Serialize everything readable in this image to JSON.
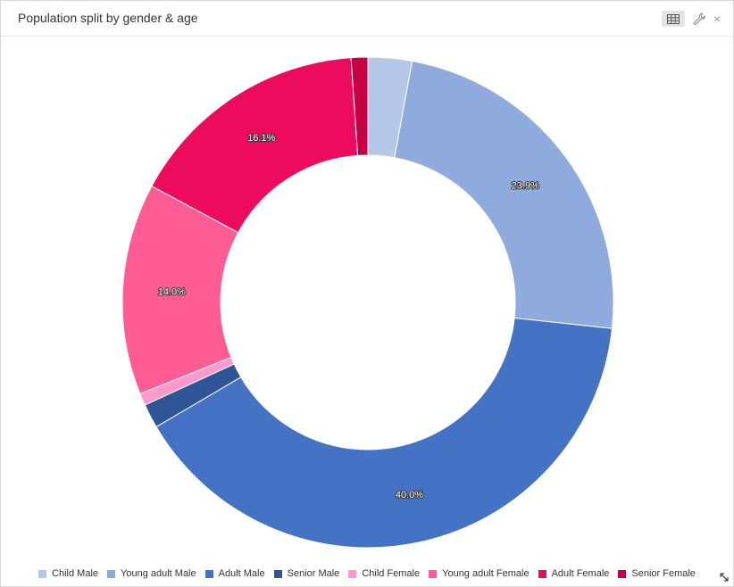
{
  "widget": {
    "title": "Population split by gender & age",
    "close_glyph": "×",
    "icons": {
      "table": "table-icon",
      "settings": "wrench-icon",
      "close": "close-icon",
      "resize": "resize-icon"
    }
  },
  "chart_data": {
    "type": "pie",
    "donut": true,
    "title": "Population split by gender & age",
    "legend_position": "bottom",
    "series": [
      {
        "name": "Child Male",
        "value": 2.9,
        "label": "",
        "color": "#b4c7e7"
      },
      {
        "name": "Young adult Male",
        "value": 23.9,
        "label": "23.9%",
        "color": "#8faadc"
      },
      {
        "name": "Adult Male",
        "value": 40.0,
        "label": "40.0%",
        "color": "#4472c4"
      },
      {
        "name": "Senior Male",
        "value": 1.6,
        "label": "",
        "color": "#2f5597"
      },
      {
        "name": "Child Female",
        "value": 0.8,
        "label": "",
        "color": "#ff99cc"
      },
      {
        "name": "Young adult Female",
        "value": 14.0,
        "label": "14.0%",
        "color": "#ff5c93"
      },
      {
        "name": "Adult Female",
        "value": 16.1,
        "label": "16.1%",
        "color": "#ec0b5c"
      },
      {
        "name": "Senior Female",
        "value": 1.1,
        "label": "",
        "color": "#c70044"
      }
    ]
  }
}
